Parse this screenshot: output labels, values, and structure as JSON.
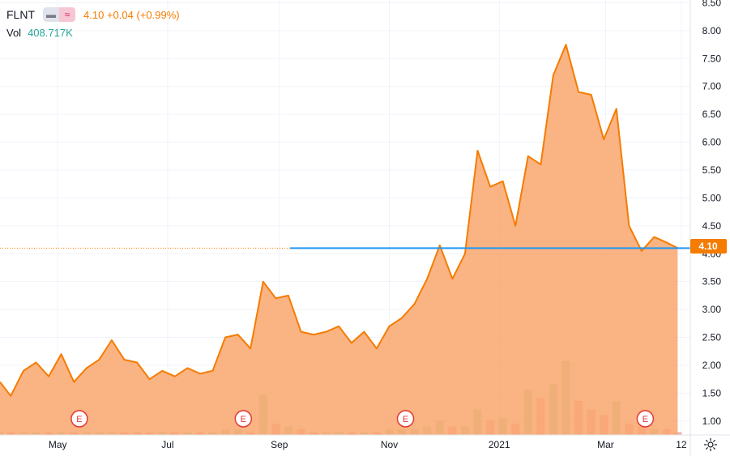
{
  "legend": {
    "symbol": "FLNT",
    "hide_icon": "minus-icon",
    "compare_icon": "approx-icon",
    "last": "4.10",
    "change": "+0.04",
    "change_pct": "(+0.99%)",
    "vol_label": "Vol",
    "vol_value": "408.717K"
  },
  "price_tag": "4.10",
  "settings_icon": "gear-icon",
  "colors": {
    "line": "#f57c00",
    "area": "#f9a66c",
    "reference_line": "#2196f3",
    "volume_up": "#a5d6a7",
    "volume_down": "#ef9a9a",
    "earnings": "#e53935"
  },
  "chart_data": {
    "type": "area",
    "title": "FLNT",
    "ylim": [
      0.75,
      8.55
    ],
    "y_ticks": [
      "8.50",
      "8.00",
      "7.50",
      "7.00",
      "6.50",
      "6.00",
      "5.50",
      "5.00",
      "4.50",
      "4.00",
      "3.50",
      "3.00",
      "2.50",
      "2.00",
      "1.50",
      "1.00"
    ],
    "y_tick_values": [
      8.5,
      8,
      7.5,
      7,
      6.5,
      6,
      5.5,
      5,
      4.5,
      4,
      3.5,
      3,
      2.5,
      2,
      1.5,
      1
    ],
    "x_ticks": [
      {
        "label": "May",
        "date": "2020-05-01"
      },
      {
        "label": "Jul",
        "date": "2020-07-01"
      },
      {
        "label": "Sep",
        "date": "2020-09-01"
      },
      {
        "label": "Nov",
        "date": "2020-11-01"
      },
      {
        "label": "2021",
        "date": "2021-01-01"
      },
      {
        "label": "Mar",
        "date": "2021-03-01"
      },
      {
        "label": "12",
        "date": "2021-04-12"
      }
    ],
    "x": [
      "2020-03-30",
      "2020-04-05",
      "2020-04-12",
      "2020-04-19",
      "2020-04-26",
      "2020-05-03",
      "2020-05-10",
      "2020-05-17",
      "2020-05-24",
      "2020-05-31",
      "2020-06-07",
      "2020-06-14",
      "2020-06-21",
      "2020-06-28",
      "2020-07-05",
      "2020-07-12",
      "2020-07-19",
      "2020-07-26",
      "2020-08-02",
      "2020-08-09",
      "2020-08-16",
      "2020-08-23",
      "2020-08-30",
      "2020-09-06",
      "2020-09-13",
      "2020-09-20",
      "2020-09-27",
      "2020-10-04",
      "2020-10-11",
      "2020-10-18",
      "2020-10-25",
      "2020-11-01",
      "2020-11-08",
      "2020-11-15",
      "2020-11-22",
      "2020-11-29",
      "2020-12-06",
      "2020-12-13",
      "2020-12-20",
      "2020-12-27",
      "2021-01-03",
      "2021-01-10",
      "2021-01-17",
      "2021-01-24",
      "2021-01-31",
      "2021-02-07",
      "2021-02-14",
      "2021-02-21",
      "2021-02-28",
      "2021-03-07",
      "2021-03-14",
      "2021-03-21",
      "2021-03-28",
      "2021-04-04",
      "2021-04-10"
    ],
    "series": [
      {
        "name": "FLNT",
        "values": [
          1.7,
          1.45,
          1.9,
          2.05,
          1.8,
          2.2,
          1.7,
          1.95,
          2.1,
          2.45,
          2.1,
          2.05,
          1.75,
          1.9,
          1.8,
          1.95,
          1.85,
          1.9,
          2.5,
          2.55,
          2.3,
          3.5,
          3.2,
          3.25,
          2.6,
          2.55,
          2.6,
          2.7,
          2.4,
          2.6,
          2.3,
          2.7,
          2.85,
          3.1,
          3.55,
          4.15,
          3.55,
          4.0,
          5.85,
          5.2,
          5.3,
          4.5,
          5.75,
          5.6,
          7.2,
          7.75,
          6.9,
          6.85,
          6.05,
          6.6,
          4.5,
          4.05,
          4.3,
          4.2,
          4.1
        ]
      }
    ],
    "reference_line": {
      "value": 4.1,
      "from": "2020-09-07"
    },
    "earnings_markers": {
      "label": "E",
      "dates": [
        "2020-05-13",
        "2020-08-12",
        "2020-11-10",
        "2021-03-23"
      ]
    },
    "volume": {
      "label": "Vol",
      "values": [
        0.1,
        0.1,
        0.1,
        0.1,
        0.1,
        0.1,
        0.1,
        0.1,
        0.1,
        0.1,
        0.1,
        0.1,
        0.1,
        0.1,
        0.1,
        0.1,
        0.1,
        0.1,
        0.2,
        0.2,
        0.1,
        1.4,
        0.4,
        0.3,
        0.2,
        0.1,
        0.1,
        0.1,
        0.1,
        0.1,
        0.1,
        0.2,
        0.2,
        0.2,
        0.3,
        0.5,
        0.3,
        0.3,
        0.9,
        0.5,
        0.6,
        0.4,
        1.6,
        1.3,
        1.8,
        2.6,
        1.2,
        0.9,
        0.7,
        1.2,
        0.4,
        0.3,
        0.2,
        0.2,
        0.1
      ],
      "ylim": [
        0,
        4
      ]
    }
  }
}
